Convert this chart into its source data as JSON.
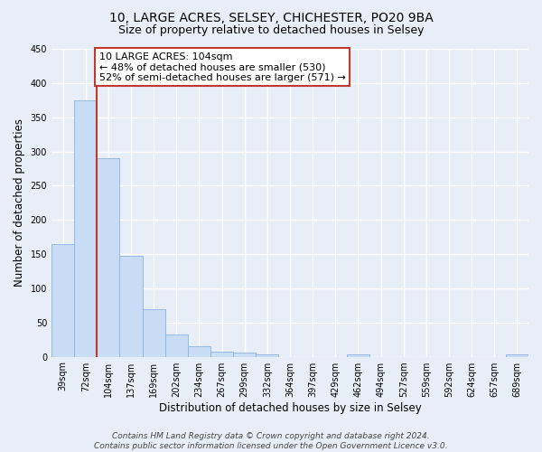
{
  "title": "10, LARGE ACRES, SELSEY, CHICHESTER, PO20 9BA",
  "subtitle": "Size of property relative to detached houses in Selsey",
  "xlabel": "Distribution of detached houses by size in Selsey",
  "ylabel": "Number of detached properties",
  "footer_line1": "Contains HM Land Registry data © Crown copyright and database right 2024.",
  "footer_line2": "Contains public sector information licensed under the Open Government Licence v3.0.",
  "bins": [
    "39sqm",
    "72sqm",
    "104sqm",
    "137sqm",
    "169sqm",
    "202sqm",
    "234sqm",
    "267sqm",
    "299sqm",
    "332sqm",
    "364sqm",
    "397sqm",
    "429sqm",
    "462sqm",
    "494sqm",
    "527sqm",
    "559sqm",
    "592sqm",
    "624sqm",
    "657sqm",
    "689sqm"
  ],
  "values": [
    165,
    375,
    290,
    148,
    70,
    33,
    15,
    7,
    6,
    4,
    0,
    0,
    0,
    4,
    0,
    0,
    0,
    0,
    0,
    0,
    3
  ],
  "highlight_bin_index": 2,
  "bar_color": "#c9dcf5",
  "bar_edge_color": "#8cb4e0",
  "highlight_line_color": "#c0392b",
  "annotation_line1": "10 LARGE ACRES: 104sqm",
  "annotation_line2": "← 48% of detached houses are smaller (530)",
  "annotation_line3": "52% of semi-detached houses are larger (571) →",
  "annotation_box_color": "#ffffff",
  "annotation_box_edge": "#c0392b",
  "ylim": [
    0,
    450
  ],
  "yticks": [
    0,
    50,
    100,
    150,
    200,
    250,
    300,
    350,
    400,
    450
  ],
  "background_color": "#e8eef8",
  "plot_bg_color": "#e8eef8",
  "grid_color": "#ffffff",
  "title_fontsize": 10,
  "subtitle_fontsize": 9,
  "axis_label_fontsize": 8.5,
  "tick_fontsize": 7,
  "annotation_fontsize": 8,
  "footer_fontsize": 6.5
}
